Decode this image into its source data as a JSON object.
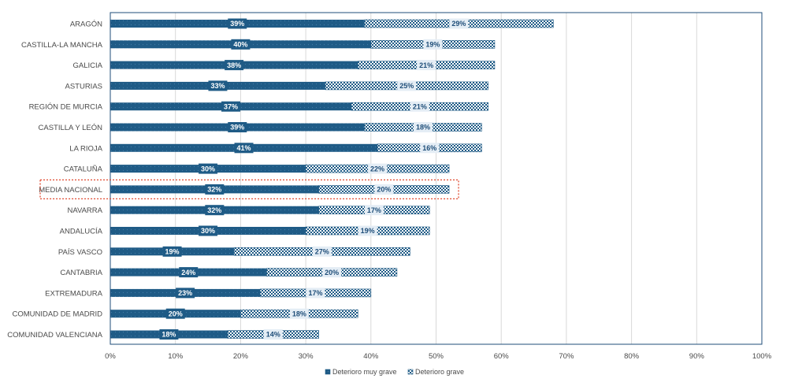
{
  "chart_data": {
    "type": "bar",
    "orientation": "horizontal",
    "stacked": true,
    "categories": [
      "ARAGÓN",
      "CASTILLA-LA MANCHA",
      "GALICIA",
      "ASTURIAS",
      "REGIÓN DE MURCIA",
      "CASTILLA Y LEÓN",
      "LA RIOJA",
      "CATALUÑA",
      "MEDIA NACIONAL",
      "NAVARRA",
      "ANDALUCÍA",
      "PAÍS VASCO",
      "CANTABRIA",
      "EXTREMADURA",
      "COMUNIDAD DE MADRID",
      "COMUNIDAD VALENCIANA"
    ],
    "series": [
      {
        "name": "Deterioro muy grave",
        "values": [
          39,
          40,
          38,
          33,
          37,
          39,
          41,
          30,
          32,
          32,
          30,
          19,
          24,
          23,
          20,
          18
        ],
        "labels": [
          "39%",
          "40%",
          "38%",
          "33%",
          "37%",
          "39%",
          "41%",
          "30%",
          "32%",
          "32%",
          "30%",
          "19%",
          "24%",
          "23%",
          "20%",
          "18%"
        ]
      },
      {
        "name": "Deterioro grave",
        "values": [
          29,
          19,
          21,
          25,
          21,
          18,
          16,
          22,
          20,
          17,
          19,
          27,
          20,
          17,
          18,
          14
        ],
        "labels": [
          "29%",
          "19%",
          "21%",
          "25%",
          "21%",
          "18%",
          "16%",
          "22%",
          "20%",
          "17%",
          "19%",
          "27%",
          "20%",
          "17%",
          "18%",
          "14%"
        ]
      }
    ],
    "xlim": [
      0,
      100
    ],
    "xticks": [
      "0%",
      "10%",
      "20%",
      "30%",
      "40%",
      "50%",
      "60%",
      "70%",
      "80%",
      "90%",
      "100%"
    ],
    "highlight_category": "MEDIA NACIONAL",
    "legend_position": "bottom-center",
    "grid": true
  },
  "colors": {
    "dark": "#1f5b86",
    "light": "#cfe0ee",
    "highlight": "#e0492f",
    "grid": "#d9d9d9",
    "frame": "#1f4e79"
  }
}
